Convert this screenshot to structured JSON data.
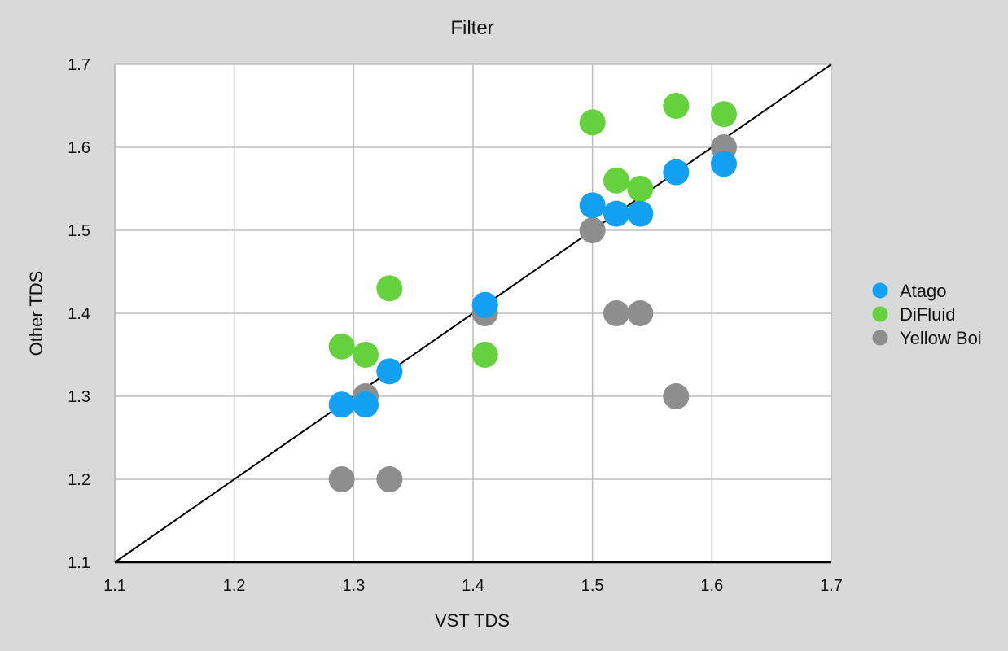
{
  "chart_data": {
    "type": "scatter",
    "title": "Filter",
    "xlabel": "VST TDS",
    "ylabel": "Other TDS",
    "xlim": [
      1.1,
      1.7
    ],
    "ylim": [
      1.1,
      1.7
    ],
    "x_ticks": [
      "1.1",
      "1.2",
      "1.3",
      "1.4",
      "1.5",
      "1.6",
      "1.7"
    ],
    "y_ticks": [
      "1.1",
      "1.2",
      "1.3",
      "1.4",
      "1.5",
      "1.6",
      "1.7"
    ],
    "grid": true,
    "legend_position": "right",
    "reference_line": {
      "from": [
        1.1,
        1.1
      ],
      "to": [
        1.7,
        1.7
      ],
      "color": "#000000"
    },
    "series": [
      {
        "name": "Yellow Boi",
        "color": "#8e8e8e",
        "points": [
          {
            "x": 1.29,
            "y": 1.2
          },
          {
            "x": 1.31,
            "y": 1.3
          },
          {
            "x": 1.33,
            "y": 1.2
          },
          {
            "x": 1.41,
            "y": 1.4
          },
          {
            "x": 1.5,
            "y": 1.5
          },
          {
            "x": 1.52,
            "y": 1.4
          },
          {
            "x": 1.54,
            "y": 1.4
          },
          {
            "x": 1.57,
            "y": 1.3
          },
          {
            "x": 1.61,
            "y": 1.6
          }
        ]
      },
      {
        "name": "DiFluid",
        "color": "#65d13c",
        "points": [
          {
            "x": 1.29,
            "y": 1.36
          },
          {
            "x": 1.31,
            "y": 1.35
          },
          {
            "x": 1.33,
            "y": 1.43
          },
          {
            "x": 1.41,
            "y": 1.35
          },
          {
            "x": 1.5,
            "y": 1.63
          },
          {
            "x": 1.52,
            "y": 1.56
          },
          {
            "x": 1.54,
            "y": 1.55
          },
          {
            "x": 1.57,
            "y": 1.65
          },
          {
            "x": 1.61,
            "y": 1.64
          }
        ]
      },
      {
        "name": "Atago",
        "color": "#12a0f2",
        "points": [
          {
            "x": 1.29,
            "y": 1.29
          },
          {
            "x": 1.31,
            "y": 1.29
          },
          {
            "x": 1.33,
            "y": 1.33
          },
          {
            "x": 1.41,
            "y": 1.41
          },
          {
            "x": 1.5,
            "y": 1.53
          },
          {
            "x": 1.52,
            "y": 1.52
          },
          {
            "x": 1.54,
            "y": 1.52
          },
          {
            "x": 1.57,
            "y": 1.57
          },
          {
            "x": 1.61,
            "y": 1.58
          }
        ]
      }
    ],
    "legend": [
      "Atago",
      "DiFluid",
      "Yellow Boi"
    ]
  }
}
